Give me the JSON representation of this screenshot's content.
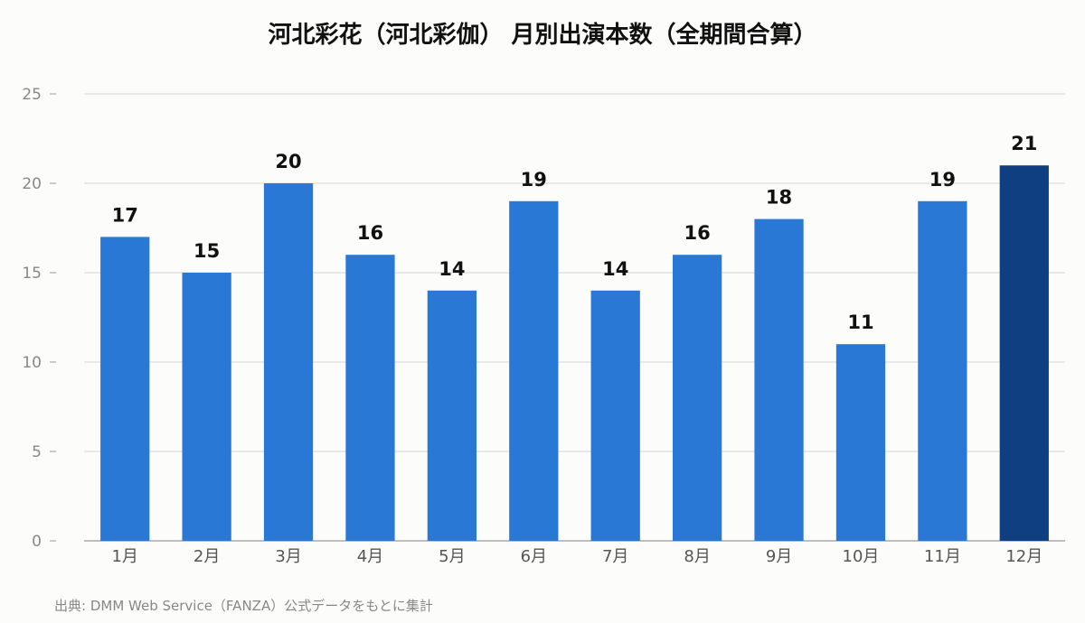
{
  "chart_data": {
    "type": "bar",
    "title": "河北彩花（河北彩伽） 月別出演本数（全期間合算）",
    "categories": [
      "1月",
      "2月",
      "3月",
      "4月",
      "5月",
      "6月",
      "7月",
      "8月",
      "9月",
      "10月",
      "11月",
      "12月"
    ],
    "values": [
      17,
      15,
      20,
      16,
      14,
      19,
      14,
      16,
      18,
      11,
      19,
      21
    ],
    "ylim": [
      0,
      25
    ],
    "yticks": [
      0,
      5,
      10,
      15,
      20,
      25
    ],
    "xlabel": "",
    "ylabel": "",
    "grid": true,
    "colors": {
      "bar": "#2a78d6",
      "highlight": "#0f3f80",
      "grid": "#e2e2e2",
      "axis": "#aaaaaa"
    },
    "highlight_index": 11
  },
  "source": "出典: DMM Web Service（FANZA）公式データをもとに集計"
}
